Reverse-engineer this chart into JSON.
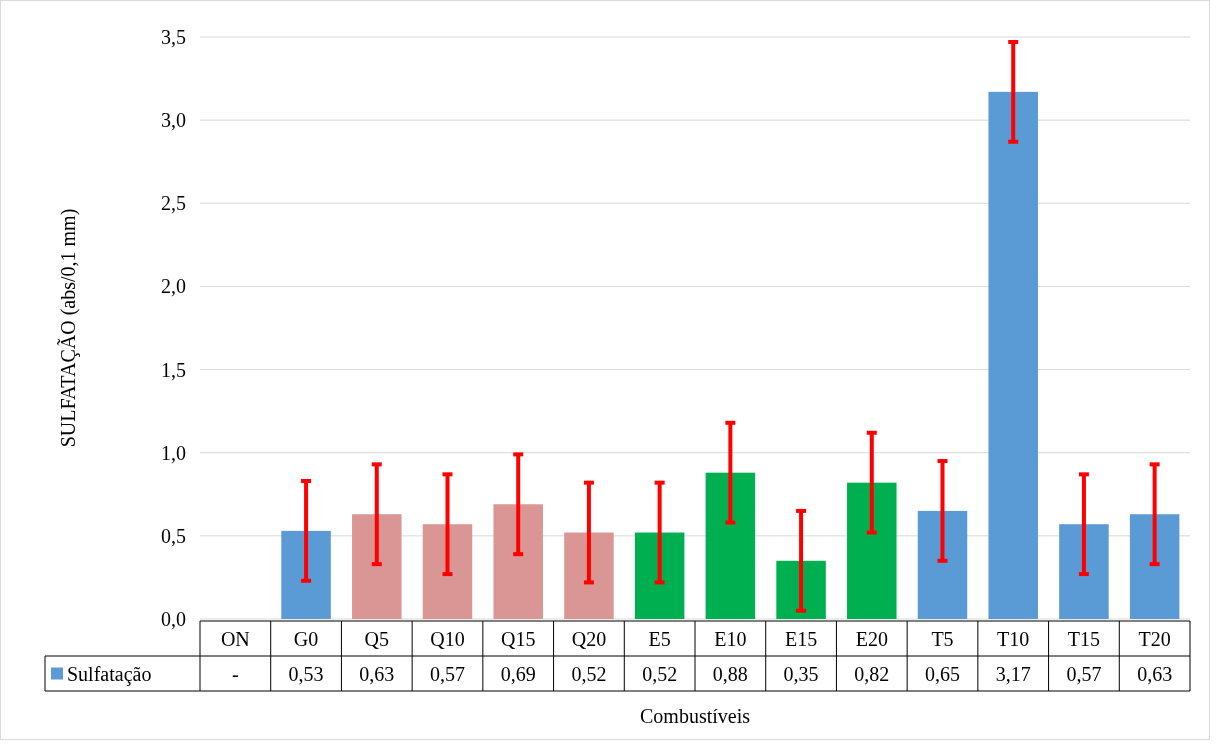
{
  "chart_data": {
    "type": "bar",
    "xlabel": "Combustíveis",
    "ylabel": "SULFATAÇÃO (abs/0,1 mm)",
    "categories": [
      "ON",
      "G0",
      "Q5",
      "Q10",
      "Q15",
      "Q20",
      "E5",
      "E10",
      "E15",
      "E20",
      "T5",
      "T10",
      "T15",
      "T20"
    ],
    "series": [
      {
        "name": "Sulfatação",
        "color": "#5b9bd5",
        "values": [
          null,
          0.53,
          0.63,
          0.57,
          0.69,
          0.52,
          0.52,
          0.88,
          0.35,
          0.82,
          0.65,
          3.17,
          0.57,
          0.63
        ],
        "colors": [
          null,
          "#5b9bd5",
          "#da9694",
          "#da9694",
          "#da9694",
          "#da9694",
          "#00b050",
          "#00b050",
          "#00b050",
          "#00b050",
          "#5b9bd5",
          "#5b9bd5",
          "#5b9bd5",
          "#5b9bd5"
        ],
        "errors": [
          null,
          0.3,
          0.3,
          0.3,
          0.3,
          0.3,
          0.3,
          0.3,
          0.3,
          0.3,
          0.3,
          0.3,
          0.3,
          0.3
        ],
        "value_labels": [
          "-",
          "0,53",
          "0,63",
          "0,57",
          "0,69",
          "0,52",
          "0,52",
          "0,88",
          "0,35",
          "0,82",
          "0,65",
          "3,17",
          "0,57",
          "0,63"
        ]
      }
    ],
    "ylim": [
      0,
      3.5
    ],
    "yticks": [
      {
        "value": 0,
        "label": "0,0"
      },
      {
        "value": 0.5,
        "label": "0,5"
      },
      {
        "value": 1,
        "label": "1,0"
      },
      {
        "value": 1.5,
        "label": "1,5"
      },
      {
        "value": 2,
        "label": "2,0"
      },
      {
        "value": 2.5,
        "label": "2,5"
      },
      {
        "value": 3,
        "label": "3,0"
      },
      {
        "value": 3.5,
        "label": "3,5"
      }
    ],
    "grid": "y"
  }
}
